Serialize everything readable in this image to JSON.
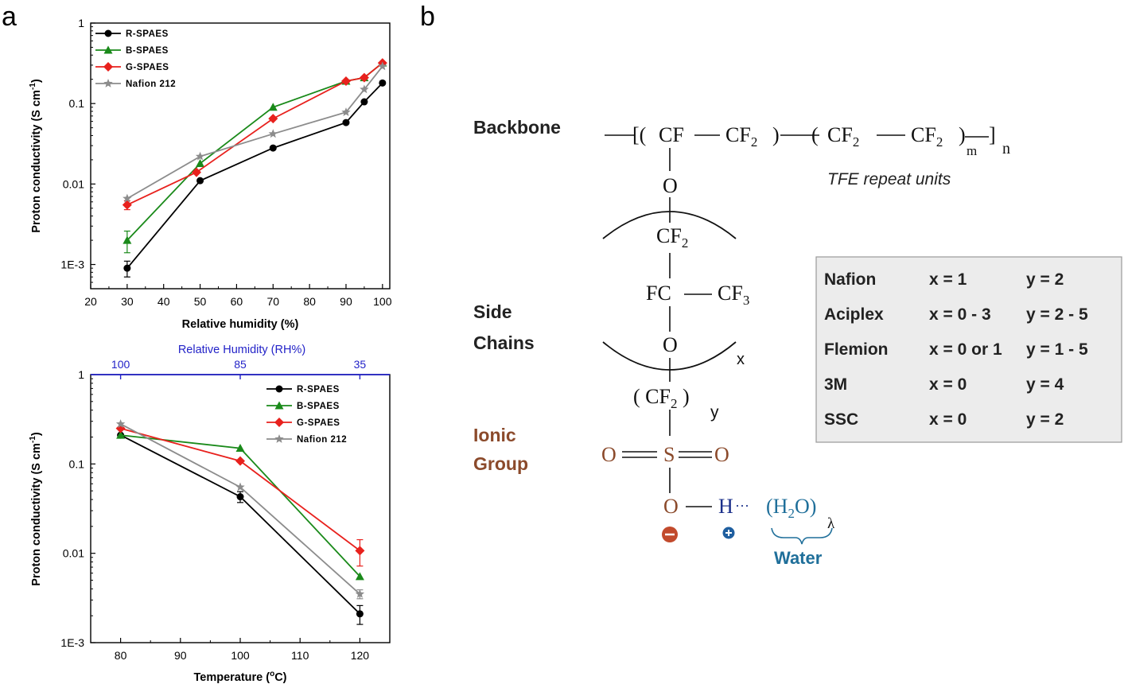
{
  "panels": {
    "a": "a",
    "b": "b"
  },
  "chart_data": [
    {
      "type": "line",
      "xlabel": "Relative humidity (%)",
      "ylabel": "Proton conductivity (S cm",
      "ylabel_sup": "-1",
      "ylabel_close": ")",
      "xlim": [
        20,
        102
      ],
      "ylim": [
        0.0005,
        1
      ],
      "yscale": "log",
      "x_ticks": [
        20,
        30,
        40,
        50,
        60,
        70,
        80,
        90,
        100
      ],
      "y_ticks": [
        {
          "v": 1,
          "label": "1"
        },
        {
          "v": 0.1,
          "label": "0.1"
        },
        {
          "v": 0.01,
          "label": "0.01"
        },
        {
          "v": 0.001,
          "label": "1E-3"
        }
      ],
      "legend_position": "top-left",
      "series": [
        {
          "name": "R-SPAES",
          "color": "#000000",
          "marker": "circle",
          "x": [
            30,
            50,
            70,
            90,
            95,
            100
          ],
          "y": [
            0.0009,
            0.011,
            0.028,
            0.058,
            0.105,
            0.18
          ],
          "err": [
            0.0002,
            0,
            0,
            0,
            0,
            0
          ]
        },
        {
          "name": "B-SPAES",
          "color": "#1a8a1a",
          "marker": "triangle",
          "x": [
            30,
            50,
            70,
            90,
            95,
            100
          ],
          "y": [
            0.002,
            0.018,
            0.09,
            0.19,
            0.21,
            0.32
          ],
          "err": [
            0.0006,
            0,
            0,
            0,
            0,
            0
          ]
        },
        {
          "name": "G-SPAES",
          "color": "#e8211d",
          "marker": "diamond",
          "x": [
            30,
            49,
            70,
            90,
            95,
            100
          ],
          "y": [
            0.0055,
            0.014,
            0.065,
            0.19,
            0.21,
            0.32
          ],
          "err": [
            0.0007,
            0,
            0,
            0,
            0,
            0
          ]
        },
        {
          "name": "Nafion 212",
          "color": "#8c8c8c",
          "marker": "star",
          "x": [
            30,
            50,
            70,
            90,
            95,
            100
          ],
          "y": [
            0.0066,
            0.022,
            0.042,
            0.078,
            0.15,
            0.29
          ],
          "err": [
            0,
            0,
            0,
            0,
            0,
            0
          ]
        }
      ]
    },
    {
      "type": "line",
      "xlabel": "Temperature (",
      "xlabel_deg": "o",
      "xlabel_close": "C)",
      "top_xlabel": "Relative Humidity (RH%)",
      "top_x_ticks": [
        {
          "v": 80,
          "label": "100"
        },
        {
          "v": 100,
          "label": "85"
        },
        {
          "v": 120,
          "label": "35"
        }
      ],
      "ylabel": "Proton conductivity (S cm",
      "ylabel_sup": "-1",
      "ylabel_close": ")",
      "xlim": [
        75,
        125
      ],
      "ylim": [
        0.001,
        1
      ],
      "yscale": "log",
      "x_ticks": [
        80,
        90,
        100,
        110,
        120
      ],
      "y_ticks": [
        {
          "v": 1,
          "label": "1"
        },
        {
          "v": 0.1,
          "label": "0.1"
        },
        {
          "v": 0.01,
          "label": "0.01"
        },
        {
          "v": 0.001,
          "label": "1E-3"
        }
      ],
      "legend_position": "top-right",
      "series": [
        {
          "name": "R-SPAES",
          "color": "#000000",
          "marker": "circle",
          "x": [
            80,
            100,
            120
          ],
          "y": [
            0.21,
            0.043,
            0.0021
          ],
          "err": [
            0,
            0.006,
            0.0005
          ]
        },
        {
          "name": "B-SPAES",
          "color": "#1a8a1a",
          "marker": "triangle",
          "x": [
            80,
            100,
            120
          ],
          "y": [
            0.21,
            0.15,
            0.0055
          ],
          "err": [
            0,
            0,
            0
          ]
        },
        {
          "name": "G-SPAES",
          "color": "#e8211d",
          "marker": "diamond",
          "x": [
            80,
            100,
            120
          ],
          "y": [
            0.25,
            0.108,
            0.0107
          ],
          "err": [
            0,
            0,
            0.0035
          ]
        },
        {
          "name": "Nafion 212",
          "color": "#8c8c8c",
          "marker": "star",
          "x": [
            80,
            100,
            120
          ],
          "y": [
            0.28,
            0.055,
            0.0035
          ],
          "err": [
            0,
            0,
            0.0004
          ]
        }
      ]
    }
  ],
  "structure": {
    "backbone_label": "Backbone",
    "side_label_1": "Side",
    "side_label_2": "Chains",
    "ionic_label_1": "Ionic",
    "ionic_label_2": "Group",
    "tfe_label": "TFE repeat units",
    "water_label": "Water",
    "chem": {
      "open": "[(",
      "cf": "CF",
      "cf2": "CF",
      "close1": ")",
      "cf2b": "CF",
      "cf2c": "CF",
      "close2": ")",
      "m": "m",
      "bracket": "]",
      "n": "n",
      "o1": "O",
      "cf2d": "CF",
      "fc": "FC",
      "cf3": "CF",
      "three": "3",
      "two": "2",
      "o2": "O",
      "x": "x",
      "cf2y_open": "( CF",
      "cf2y_close": " )",
      "y": "y",
      "o3": "O",
      "s": "S",
      "o4": "O",
      "o5": "O",
      "h": "H",
      "water_formula": "(H",
      "water_o": "O)",
      "lambda": "λ",
      "dots": "···"
    },
    "table": [
      {
        "name": "Nafion",
        "x": "x = 1",
        "y": "y = 2"
      },
      {
        "name": "Aciplex",
        "x": "x = 0 - 3",
        "y": "y = 2 - 5"
      },
      {
        "name": "Flemion",
        "x": "x = 0 or 1",
        "y": "y = 1 - 5"
      },
      {
        "name": "3M",
        "x": "x = 0",
        "y": "y = 4"
      },
      {
        "name": "SSC",
        "x": "x = 0",
        "y": "y = 2"
      }
    ],
    "colors": {
      "ionic": "#8b4a2b",
      "water": "#1f6f9a",
      "h": "#1a2f8a",
      "neg": "#c24a2c",
      "pos": "#1f5fa0"
    }
  }
}
